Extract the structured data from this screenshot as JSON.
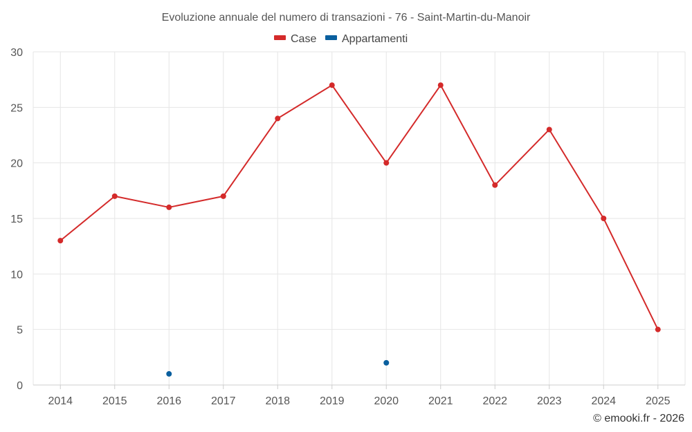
{
  "chart_data": {
    "type": "line",
    "title": "Evoluzione annuale del numero di transazioni - 76 - Saint-Martin-du-Manoir",
    "categories": [
      "2014",
      "2015",
      "2016",
      "2017",
      "2018",
      "2019",
      "2020",
      "2021",
      "2022",
      "2023",
      "2024",
      "2025"
    ],
    "ylim": [
      0,
      30
    ],
    "yticks": [
      "0",
      "5",
      "10",
      "15",
      "20",
      "25",
      "30"
    ],
    "legend_position": "top-center",
    "series": [
      {
        "name": "Case",
        "color": "#d42a2a",
        "values": [
          13,
          17,
          16,
          17,
          24,
          27,
          20,
          27,
          18,
          23,
          15,
          5
        ]
      },
      {
        "name": "Appartamenti",
        "color": "#0a5f9e",
        "values": [
          null,
          null,
          1,
          null,
          null,
          null,
          2,
          null,
          null,
          null,
          null,
          null
        ]
      }
    ]
  },
  "credit": "© emooki.fr - 2026"
}
